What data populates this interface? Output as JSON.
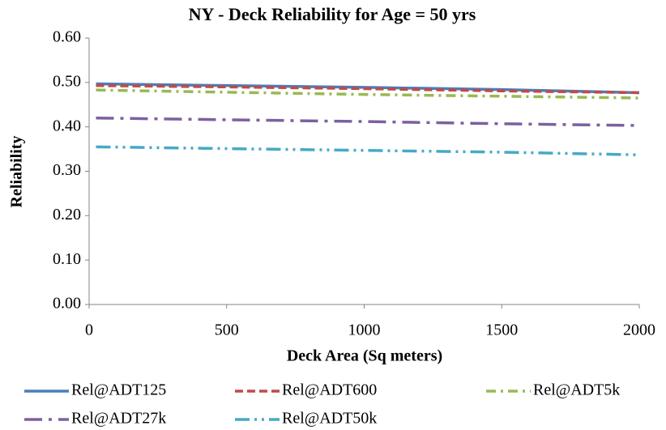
{
  "chart_data": {
    "type": "line",
    "title": "NY - Deck Reliability  for Age = 50 yrs",
    "x_label": "Deck Area (Sq meters)",
    "y_label": "Reliability",
    "x": [
      25,
      500,
      1000,
      1500,
      2000
    ],
    "series": [
      {
        "name": "Rel@ADT125",
        "color": "#4a7ebb",
        "dash": "solid",
        "values": [
          0.497,
          0.493,
          0.489,
          0.484,
          0.477
        ]
      },
      {
        "name": "Rel@ADT600",
        "color": "#be4b48",
        "dash": "dash",
        "values": [
          0.493,
          0.49,
          0.486,
          0.481,
          0.477
        ]
      },
      {
        "name": "Rel@ADT5k",
        "color": "#98b954",
        "dash": "dashdot",
        "values": [
          0.483,
          0.478,
          0.473,
          0.469,
          0.465
        ]
      },
      {
        "name": "Rel@ADT27k",
        "color": "#7d60a0",
        "dash": "longdashdot",
        "values": [
          0.42,
          0.416,
          0.412,
          0.407,
          0.403
        ]
      },
      {
        "name": "Rel@ADT50k",
        "color": "#46aac5",
        "dash": "dashdotdot",
        "values": [
          0.355,
          0.351,
          0.347,
          0.343,
          0.337
        ]
      }
    ],
    "xlim": [
      0,
      2000
    ],
    "xticks": [
      0,
      500,
      1000,
      1500,
      2000
    ],
    "ylim": [
      0,
      0.6
    ],
    "yticks": [
      {
        "value": 0,
        "label": "0.00"
      },
      {
        "value": 0.1,
        "label": "0.10"
      },
      {
        "value": 0.2,
        "label": "0.20"
      },
      {
        "value": 0.3,
        "label": "0.30"
      },
      {
        "value": 0.4,
        "label": "0.40"
      },
      {
        "value": 0.5,
        "label": "0.50"
      },
      {
        "value": 0.6,
        "label": "0.60"
      }
    ],
    "grid": false,
    "legend": "bottom"
  }
}
